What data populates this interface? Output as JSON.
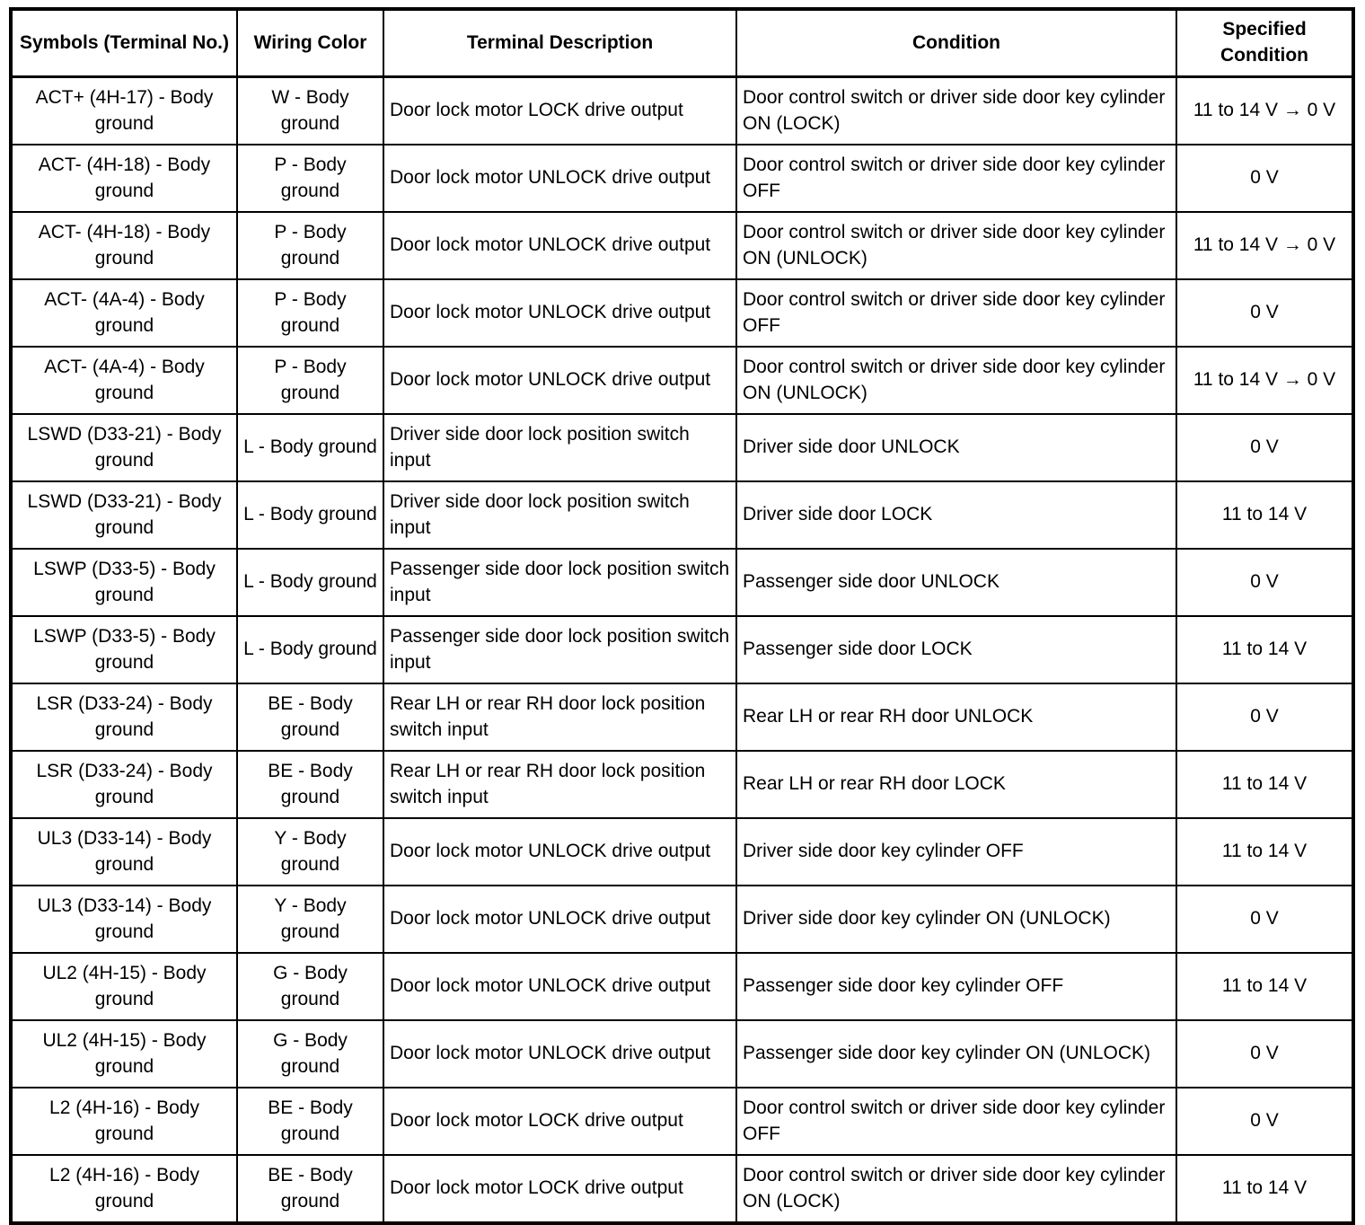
{
  "table": {
    "columns": [
      "Symbols (Terminal No.)",
      "Wiring Color",
      "Terminal Description",
      "Condition",
      "Specified Condition"
    ],
    "rows": [
      [
        "ACT+ (4H-17) - Body ground",
        "W - Body ground",
        "Door lock motor LOCK drive output",
        "Door control switch or driver side door key cylinder ON (LOCK)",
        "11 to 14 V → 0 V"
      ],
      [
        "ACT- (4H-18) - Body ground",
        "P - Body ground",
        "Door lock motor UNLOCK drive output",
        "Door control switch or driver side door key cylinder OFF",
        "0 V"
      ],
      [
        "ACT- (4H-18) - Body ground",
        "P - Body ground",
        "Door lock motor UNLOCK drive output",
        "Door control switch or driver side door key cylinder ON (UNLOCK)",
        "11 to 14 V → 0 V"
      ],
      [
        "ACT- (4A-4) - Body ground",
        "P - Body ground",
        "Door lock motor UNLOCK drive output",
        "Door control switch or driver side door key cylinder OFF",
        "0 V"
      ],
      [
        "ACT- (4A-4) - Body ground",
        "P - Body ground",
        "Door lock motor UNLOCK drive output",
        "Door control switch or driver side door key cylinder ON (UNLOCK)",
        "11 to 14 V → 0 V"
      ],
      [
        "LSWD (D33-21) - Body ground",
        "L - Body ground",
        "Driver side door lock position switch input",
        "Driver side door UNLOCK",
        "0 V"
      ],
      [
        "LSWD (D33-21) - Body ground",
        "L - Body ground",
        "Driver side door lock position switch input",
        "Driver side door LOCK",
        "11 to 14 V"
      ],
      [
        "LSWP (D33-5) - Body ground",
        "L - Body ground",
        "Passenger side door lock position switch input",
        "Passenger side door UNLOCK",
        "0 V"
      ],
      [
        "LSWP (D33-5) - Body ground",
        "L - Body ground",
        "Passenger side door lock position switch input",
        "Passenger side door LOCK",
        "11 to 14 V"
      ],
      [
        "LSR (D33-24) - Body ground",
        "BE - Body ground",
        "Rear LH or rear RH door lock position switch input",
        "Rear LH or rear RH door UNLOCK",
        "0 V"
      ],
      [
        "LSR (D33-24) - Body ground",
        "BE - Body ground",
        "Rear LH or rear RH door lock position switch input",
        "Rear LH or rear RH door LOCK",
        "11 to 14 V"
      ],
      [
        "UL3 (D33-14) - Body ground",
        "Y - Body ground",
        "Door lock motor UNLOCK drive output",
        "Driver side door key cylinder OFF",
        "11 to 14 V"
      ],
      [
        "UL3 (D33-14) - Body ground",
        "Y - Body ground",
        "Door lock motor UNLOCK drive output",
        "Driver side door key cylinder ON (UNLOCK)",
        "0 V"
      ],
      [
        "UL2 (4H-15) - Body ground",
        "G - Body ground",
        "Door lock motor UNLOCK drive output",
        "Passenger side door key cylinder OFF",
        "11 to 14 V"
      ],
      [
        "UL2 (4H-15) - Body ground",
        "G - Body ground",
        "Door lock motor UNLOCK drive output",
        "Passenger side door key cylinder ON (UNLOCK)",
        "0 V"
      ],
      [
        "L2 (4H-16) - Body ground",
        "BE - Body ground",
        "Door lock motor LOCK drive output",
        "Door control switch or driver side door key cylinder OFF",
        "0 V"
      ],
      [
        "L2 (4H-16) - Body ground",
        "BE - Body ground",
        "Door lock motor LOCK drive output",
        "Door control switch or driver side door key cylinder ON (LOCK)",
        "11 to 14 V"
      ]
    ]
  }
}
